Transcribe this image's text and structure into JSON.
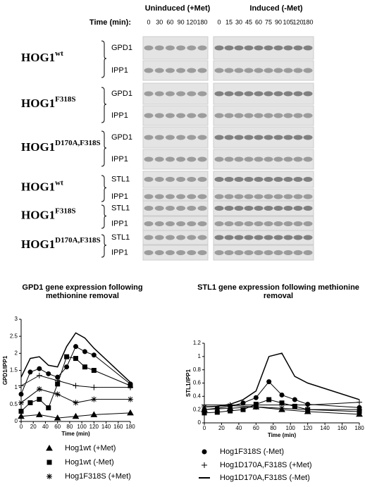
{
  "blots": {
    "uninduced": "Uninduced (+Met)",
    "induced": "Induced (-Met)",
    "time_label": "Time (min):",
    "uninduced_times": [
      "0",
      "30",
      "60",
      "90",
      "120",
      "180"
    ],
    "induced_times": [
      "0",
      "15",
      "30",
      "45",
      "60",
      "75",
      "90",
      "105",
      "120",
      "180"
    ],
    "groups": [
      {
        "base": "HOG1",
        "sup": "wt",
        "genes": [
          "GPD1",
          "IPP1"
        ]
      },
      {
        "base": "HOG1",
        "sup": "F318S",
        "genes": [
          "GPD1",
          "IPP1"
        ]
      },
      {
        "base": "HOG1",
        "sup": "D170A,F318S",
        "genes": [
          "GPD1",
          "IPP1"
        ]
      },
      {
        "base": "HOG1",
        "sup": "wt",
        "genes": [
          "STL1",
          "IPP1"
        ]
      },
      {
        "base": "HOG1",
        "sup": "F318S",
        "genes": [
          "STL1",
          "IPP1"
        ]
      },
      {
        "base": "HOG1",
        "sup": "D170A,F318S",
        "genes": [
          "STL1",
          "IPP1"
        ]
      }
    ]
  },
  "chart_data": [
    {
      "type": "line",
      "title": "GPD1 gene expression following methionine removal",
      "xlabel": "Time (min)",
      "ylabel": "GPD1/IPP1",
      "xlim": [
        0,
        180
      ],
      "xticks": [
        0,
        20,
        40,
        60,
        80,
        100,
        120,
        140,
        160,
        180
      ],
      "ylim": [
        0,
        3
      ],
      "yticks": [
        0,
        0.5,
        1,
        1.5,
        2,
        2.5,
        3
      ],
      "series": [
        {
          "name": "Hog1wt (+Met)",
          "marker": "triangle",
          "x": [
            0,
            30,
            60,
            90,
            120,
            180
          ],
          "values": [
            0.15,
            0.2,
            0.1,
            0.15,
            0.2,
            0.25
          ]
        },
        {
          "name": "Hog1wt (-Met)",
          "marker": "square",
          "x": [
            0,
            15,
            30,
            45,
            60,
            75,
            90,
            105,
            120,
            180
          ],
          "values": [
            0.3,
            0.55,
            0.65,
            0.4,
            1.1,
            1.9,
            1.85,
            1.6,
            1.5,
            1.05
          ]
        },
        {
          "name": "Hog1F318S (+Met)",
          "marker": "star",
          "x": [
            0,
            30,
            60,
            90,
            120,
            180
          ],
          "values": [
            0.55,
            0.95,
            0.8,
            0.55,
            0.65,
            0.65
          ]
        },
        {
          "name": "Hog1F318S (-Met)",
          "marker": "circle",
          "x": [
            0,
            15,
            30,
            45,
            60,
            75,
            90,
            105,
            120,
            180
          ],
          "values": [
            0.8,
            1.45,
            1.55,
            1.4,
            1.3,
            1.6,
            2.2,
            2.05,
            1.95,
            1.1
          ]
        },
        {
          "name": "Hog1D170A,F318S (+Met)",
          "marker": "plus",
          "x": [
            0,
            30,
            60,
            90,
            120,
            180
          ],
          "values": [
            1.05,
            1.35,
            1.2,
            1.05,
            1.0,
            1.0
          ]
        },
        {
          "name": "Hog1D170A,F318S (-Met)",
          "marker": "none",
          "x": [
            0,
            15,
            30,
            45,
            60,
            75,
            90,
            105,
            120,
            180
          ],
          "values": [
            1.3,
            1.85,
            1.9,
            1.65,
            1.6,
            2.2,
            2.6,
            2.45,
            2.15,
            1.15
          ]
        }
      ]
    },
    {
      "type": "line",
      "title": "STL1 gene expression following methionine removal",
      "xlabel": "Time (min)",
      "ylabel": "STL1/IPP1",
      "xlim": [
        0,
        180
      ],
      "xticks": [
        0,
        20,
        40,
        60,
        80,
        100,
        120,
        140,
        160,
        180
      ],
      "ylim": [
        0,
        1.2
      ],
      "yticks": [
        0,
        0.2,
        0.4,
        0.6,
        0.8,
        1,
        1.2
      ],
      "series": [
        {
          "marker": "triangle",
          "x": [
            0,
            30,
            60,
            90,
            120,
            180
          ],
          "values": [
            0.2,
            0.22,
            0.24,
            0.2,
            0.17,
            0.13
          ]
        },
        {
          "marker": "square",
          "x": [
            0,
            15,
            30,
            45,
            60,
            75,
            90,
            105,
            120,
            180
          ],
          "values": [
            0.15,
            0.16,
            0.18,
            0.2,
            0.28,
            0.35,
            0.3,
            0.25,
            0.2,
            0.17
          ]
        },
        {
          "marker": "star",
          "x": [
            0,
            30,
            60,
            90,
            120,
            180
          ],
          "values": [
            0.24,
            0.26,
            0.24,
            0.22,
            0.2,
            0.2
          ]
        },
        {
          "marker": "circle",
          "x": [
            0,
            15,
            30,
            45,
            60,
            75,
            90,
            105,
            120,
            180
          ],
          "values": [
            0.2,
            0.22,
            0.25,
            0.3,
            0.38,
            0.62,
            0.42,
            0.35,
            0.28,
            0.23
          ]
        },
        {
          "marker": "plus",
          "x": [
            0,
            30,
            60,
            90,
            120,
            180
          ],
          "values": [
            0.27,
            0.27,
            0.27,
            0.27,
            0.27,
            0.31
          ]
        },
        {
          "marker": "none",
          "x": [
            0,
            15,
            30,
            45,
            60,
            75,
            90,
            105,
            120,
            180
          ],
          "values": [
            0.24,
            0.25,
            0.28,
            0.35,
            0.48,
            1.0,
            1.05,
            0.7,
            0.6,
            0.35
          ]
        }
      ]
    }
  ]
}
